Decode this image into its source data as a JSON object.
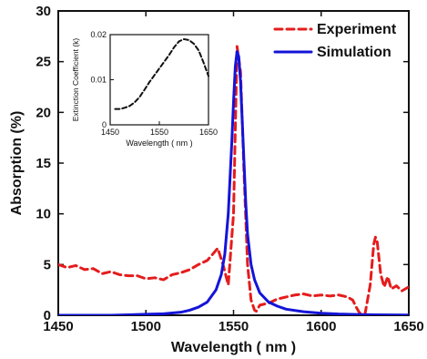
{
  "chart_data": [
    {
      "type": "line",
      "xlabel": "Wavelength ( nm )",
      "ylabel": "Absorption (%)",
      "xlim": [
        1450,
        1650
      ],
      "ylim": [
        0,
        30
      ],
      "x_ticks": [
        1450,
        1500,
        1550,
        1600,
        1650
      ],
      "y_ticks": [
        0,
        5,
        10,
        15,
        20,
        25,
        30
      ],
      "x_tick_labels": [
        "1450",
        "1500",
        "1550",
        "1600",
        "1650"
      ],
      "y_tick_labels": [
        "0",
        "5",
        "10",
        "15",
        "20",
        "25",
        "30"
      ],
      "grid": false,
      "legend_position": "top-right",
      "series": [
        {
          "name": "Experiment",
          "color": "#e51c1c",
          "style": "dashed",
          "x": [
            1450,
            1455,
            1460,
            1465,
            1470,
            1475,
            1480,
            1485,
            1490,
            1495,
            1500,
            1505,
            1510,
            1515,
            1520,
            1525,
            1530,
            1535,
            1538,
            1541,
            1544,
            1547,
            1550,
            1552,
            1554,
            1556,
            1558,
            1560,
            1562,
            1563,
            1565,
            1570,
            1575,
            1580,
            1585,
            1590,
            1595,
            1600,
            1605,
            1610,
            1615,
            1618,
            1620,
            1622,
            1625,
            1628,
            1630,
            1631,
            1632,
            1634,
            1636,
            1638,
            1640,
            1643,
            1646,
            1650
          ],
          "y": [
            5.0,
            4.7,
            4.9,
            4.5,
            4.6,
            4.1,
            4.3,
            4.0,
            3.9,
            3.9,
            3.6,
            3.7,
            3.5,
            4.0,
            4.2,
            4.5,
            5.0,
            5.4,
            6.0,
            6.6,
            5.0,
            3.0,
            10.0,
            26.5,
            24.0,
            14.0,
            5.0,
            1.5,
            0.5,
            0.4,
            1.0,
            1.2,
            1.6,
            1.8,
            2.0,
            2.1,
            1.9,
            2.0,
            1.9,
            2.0,
            1.8,
            1.5,
            0.8,
            0.2,
            0.1,
            3.0,
            7.0,
            7.7,
            7.2,
            4.0,
            2.8,
            3.8,
            2.6,
            2.9,
            2.4,
            2.8
          ]
        },
        {
          "name": "Simulation",
          "color": "#1414d8",
          "style": "solid",
          "x": [
            1450,
            1460,
            1470,
            1480,
            1490,
            1500,
            1510,
            1520,
            1525,
            1530,
            1535,
            1540,
            1543,
            1545,
            1547,
            1549,
            1550,
            1551,
            1552,
            1553,
            1554,
            1555,
            1556,
            1557,
            1558,
            1560,
            1562,
            1565,
            1570,
            1575,
            1580,
            1590,
            1600,
            1610,
            1620,
            1630,
            1640,
            1650
          ],
          "y": [
            0.0,
            0.0,
            0.0,
            0.0,
            0.05,
            0.1,
            0.15,
            0.3,
            0.5,
            0.8,
            1.3,
            2.5,
            4.0,
            6.0,
            10.0,
            17.0,
            21.0,
            24.5,
            26.0,
            25.5,
            23.0,
            19.0,
            15.0,
            11.0,
            8.0,
            5.0,
            3.5,
            2.2,
            1.3,
            0.9,
            0.6,
            0.35,
            0.2,
            0.12,
            0.08,
            0.05,
            0.03,
            0.02
          ]
        }
      ]
    },
    {
      "type": "line",
      "xlabel": "Wavelength ( nm )",
      "ylabel": "Extinction Coefficient (k)",
      "xlim": [
        1450,
        1650
      ],
      "ylim": [
        0,
        0.02
      ],
      "x_ticks": [
        1450,
        1550,
        1650
      ],
      "y_ticks": [
        0,
        0.01,
        0.02
      ],
      "x_tick_labels": [
        "1450",
        "1550",
        "1650"
      ],
      "y_tick_labels": [
        "0",
        "0.01",
        "0.02"
      ],
      "grid": false,
      "series": [
        {
          "color": "#111111",
          "style": "dashed",
          "x": [
            1460,
            1470,
            1480,
            1490,
            1500,
            1510,
            1520,
            1530,
            1540,
            1550,
            1560,
            1570,
            1580,
            1590,
            1600,
            1610,
            1620,
            1630,
            1640,
            1650
          ],
          "y": [
            0.0035,
            0.0035,
            0.0038,
            0.0042,
            0.005,
            0.0062,
            0.0078,
            0.0095,
            0.011,
            0.0125,
            0.014,
            0.0155,
            0.0172,
            0.0185,
            0.019,
            0.0188,
            0.018,
            0.0165,
            0.0138,
            0.0108
          ]
        }
      ]
    }
  ]
}
